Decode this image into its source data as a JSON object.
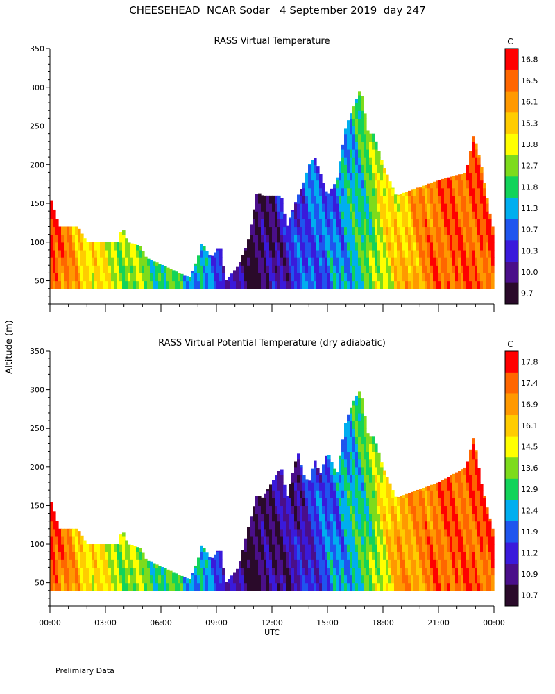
{
  "page_title": "CHEESEHEAD  NCAR Sodar   4 September 2019  day 247",
  "footer_note": "Prelimiary Data",
  "shared_axes": {
    "ylabel": "Altitude (m)",
    "xlabel": "UTC",
    "x_ticks": [
      "00:00",
      "03:00",
      "06:00",
      "09:00",
      "12:00",
      "15:00",
      "18:00",
      "21:00",
      "00:00"
    ],
    "x_range_hours": [
      0,
      24
    ],
    "y_range_m": [
      20,
      350
    ],
    "y_ticks": [
      50,
      100,
      150,
      200,
      250,
      300,
      350
    ]
  },
  "chart_data": [
    {
      "type": "heatmap",
      "title": "RASS Virtual Temperature",
      "xlabel": "UTC",
      "ylabel": "Altitude (m)",
      "colorbar_unit": "C",
      "colorbar_ticks": [
        "9.7",
        "10.0",
        "10.3",
        "10.7",
        "11.3",
        "11.8",
        "12.7",
        "13.8",
        "15.3",
        "16.1",
        "16.5",
        "16.8"
      ],
      "colorbar_colors": [
        "#2a0a2a",
        "#4a0f8a",
        "#3a1adb",
        "#1f55ee",
        "#00aeef",
        "#12d35a",
        "#7ddb1c",
        "#ffff00",
        "#ffcc00",
        "#ff9900",
        "#ff6600",
        "#ff0000"
      ],
      "top_altitude_m": [
        {
          "t": 0.0,
          "h": 160
        },
        {
          "t": 0.5,
          "h": 120
        },
        {
          "t": 1.5,
          "h": 120
        },
        {
          "t": 2.0,
          "h": 100
        },
        {
          "t": 3.7,
          "h": 100
        },
        {
          "t": 3.9,
          "h": 120
        },
        {
          "t": 4.2,
          "h": 100
        },
        {
          "t": 4.9,
          "h": 95
        },
        {
          "t": 5.2,
          "h": 80
        },
        {
          "t": 7.0,
          "h": 60
        },
        {
          "t": 7.5,
          "h": 55
        },
        {
          "t": 7.6,
          "h": 55
        },
        {
          "t": 8.0,
          "h": 80
        },
        {
          "t": 8.2,
          "h": 100
        },
        {
          "t": 8.7,
          "h": 80
        },
        {
          "t": 9.2,
          "h": 95
        },
        {
          "t": 9.5,
          "h": 50
        },
        {
          "t": 10.2,
          "h": 70
        },
        {
          "t": 10.7,
          "h": 100
        },
        {
          "t": 11.2,
          "h": 165
        },
        {
          "t": 11.5,
          "h": 160
        },
        {
          "t": 12.5,
          "h": 160
        },
        {
          "t": 12.8,
          "h": 120
        },
        {
          "t": 13.4,
          "h": 160
        },
        {
          "t": 13.7,
          "h": 175
        },
        {
          "t": 14.0,
          "h": 200
        },
        {
          "t": 14.3,
          "h": 210
        },
        {
          "t": 14.6,
          "h": 190
        },
        {
          "t": 15.0,
          "h": 160
        },
        {
          "t": 15.5,
          "h": 180
        },
        {
          "t": 16.0,
          "h": 250
        },
        {
          "t": 16.5,
          "h": 280
        },
        {
          "t": 16.8,
          "h": 300
        },
        {
          "t": 17.2,
          "h": 240
        },
        {
          "t": 17.5,
          "h": 240
        },
        {
          "t": 18.0,
          "h": 200
        },
        {
          "t": 18.7,
          "h": 160
        },
        {
          "t": 21.0,
          "h": 180
        },
        {
          "t": 22.5,
          "h": 190
        },
        {
          "t": 22.9,
          "h": 240
        },
        {
          "t": 23.3,
          "h": 200
        },
        {
          "t": 23.9,
          "h": 120
        }
      ],
      "color_by_hour": [
        {
          "t": 0,
          "level": 11
        },
        {
          "t": 1,
          "level": 9
        },
        {
          "t": 2,
          "level": 8
        },
        {
          "t": 3,
          "level": 7
        },
        {
          "t": 4,
          "level": 6
        },
        {
          "t": 5,
          "level": 6
        },
        {
          "t": 6,
          "level": 5
        },
        {
          "t": 7,
          "level": 5
        },
        {
          "t": 8,
          "level": 4
        },
        {
          "t": 9,
          "level": 3
        },
        {
          "t": 10,
          "level": 1
        },
        {
          "t": 11,
          "level": 0
        },
        {
          "t": 12,
          "level": 1
        },
        {
          "t": 13,
          "level": 2
        },
        {
          "t": 14,
          "level": 3
        },
        {
          "t": 15,
          "level": 3
        },
        {
          "t": 16,
          "level": 4
        },
        {
          "t": 17,
          "level": 5
        },
        {
          "t": 18,
          "level": 7
        },
        {
          "t": 19,
          "level": 8
        },
        {
          "t": 20,
          "level": 9
        },
        {
          "t": 21,
          "level": 10
        },
        {
          "t": 22,
          "level": 10
        },
        {
          "t": 23,
          "level": 10
        },
        {
          "t": 24,
          "level": 10
        }
      ]
    },
    {
      "type": "heatmap",
      "title": "RASS Virtual Potential Temperature (dry adiabatic)",
      "xlabel": "UTC",
      "ylabel": "Altitude (m)",
      "colorbar_unit": "C",
      "colorbar_ticks": [
        "10.7",
        "10.9",
        "11.2",
        "11.9",
        "12.4",
        "12.9",
        "13.6",
        "14.5",
        "16.1",
        "16.9",
        "17.4",
        "17.8"
      ],
      "colorbar_colors": [
        "#2a0a2a",
        "#4a0f8a",
        "#3a1adb",
        "#1f55ee",
        "#00aeef",
        "#12d35a",
        "#7ddb1c",
        "#ffff00",
        "#ffcc00",
        "#ff9900",
        "#ff6600",
        "#ff0000"
      ],
      "top_altitude_m": [
        {
          "t": 0.0,
          "h": 160
        },
        {
          "t": 0.5,
          "h": 120
        },
        {
          "t": 1.5,
          "h": 120
        },
        {
          "t": 2.0,
          "h": 100
        },
        {
          "t": 3.7,
          "h": 100
        },
        {
          "t": 3.9,
          "h": 120
        },
        {
          "t": 4.2,
          "h": 100
        },
        {
          "t": 4.9,
          "h": 95
        },
        {
          "t": 5.2,
          "h": 80
        },
        {
          "t": 7.0,
          "h": 60
        },
        {
          "t": 7.5,
          "h": 55
        },
        {
          "t": 7.6,
          "h": 55
        },
        {
          "t": 8.0,
          "h": 80
        },
        {
          "t": 8.2,
          "h": 100
        },
        {
          "t": 8.7,
          "h": 80
        },
        {
          "t": 9.2,
          "h": 95
        },
        {
          "t": 9.5,
          "h": 50
        },
        {
          "t": 10.2,
          "h": 70
        },
        {
          "t": 10.7,
          "h": 120
        },
        {
          "t": 11.2,
          "h": 165
        },
        {
          "t": 11.5,
          "h": 160
        },
        {
          "t": 12.5,
          "h": 200
        },
        {
          "t": 12.8,
          "h": 160
        },
        {
          "t": 13.4,
          "h": 220
        },
        {
          "t": 13.7,
          "h": 190
        },
        {
          "t": 14.0,
          "h": 180
        },
        {
          "t": 14.3,
          "h": 210
        },
        {
          "t": 14.6,
          "h": 190
        },
        {
          "t": 15.0,
          "h": 220
        },
        {
          "t": 15.5,
          "h": 190
        },
        {
          "t": 16.0,
          "h": 260
        },
        {
          "t": 16.5,
          "h": 290
        },
        {
          "t": 16.8,
          "h": 300
        },
        {
          "t": 17.2,
          "h": 240
        },
        {
          "t": 17.5,
          "h": 240
        },
        {
          "t": 18.0,
          "h": 200
        },
        {
          "t": 18.7,
          "h": 160
        },
        {
          "t": 21.0,
          "h": 180
        },
        {
          "t": 22.5,
          "h": 200
        },
        {
          "t": 22.9,
          "h": 240
        },
        {
          "t": 23.3,
          "h": 180
        },
        {
          "t": 23.9,
          "h": 120
        }
      ],
      "color_by_hour": [
        {
          "t": 0,
          "level": 11
        },
        {
          "t": 1,
          "level": 9
        },
        {
          "t": 2,
          "level": 8
        },
        {
          "t": 3,
          "level": 7
        },
        {
          "t": 4,
          "level": 6
        },
        {
          "t": 5,
          "level": 6
        },
        {
          "t": 6,
          "level": 5
        },
        {
          "t": 7,
          "level": 5
        },
        {
          "t": 8,
          "level": 4
        },
        {
          "t": 9,
          "level": 3
        },
        {
          "t": 10,
          "level": 1
        },
        {
          "t": 11,
          "level": 0
        },
        {
          "t": 12,
          "level": 1
        },
        {
          "t": 13,
          "level": 1
        },
        {
          "t": 14,
          "level": 2
        },
        {
          "t": 15,
          "level": 3
        },
        {
          "t": 16,
          "level": 4
        },
        {
          "t": 17,
          "level": 5
        },
        {
          "t": 18,
          "level": 7
        },
        {
          "t": 19,
          "level": 9
        },
        {
          "t": 20,
          "level": 9
        },
        {
          "t": 21,
          "level": 10
        },
        {
          "t": 22,
          "level": 10
        },
        {
          "t": 23,
          "level": 10
        },
        {
          "t": 24,
          "level": 10
        }
      ]
    }
  ]
}
